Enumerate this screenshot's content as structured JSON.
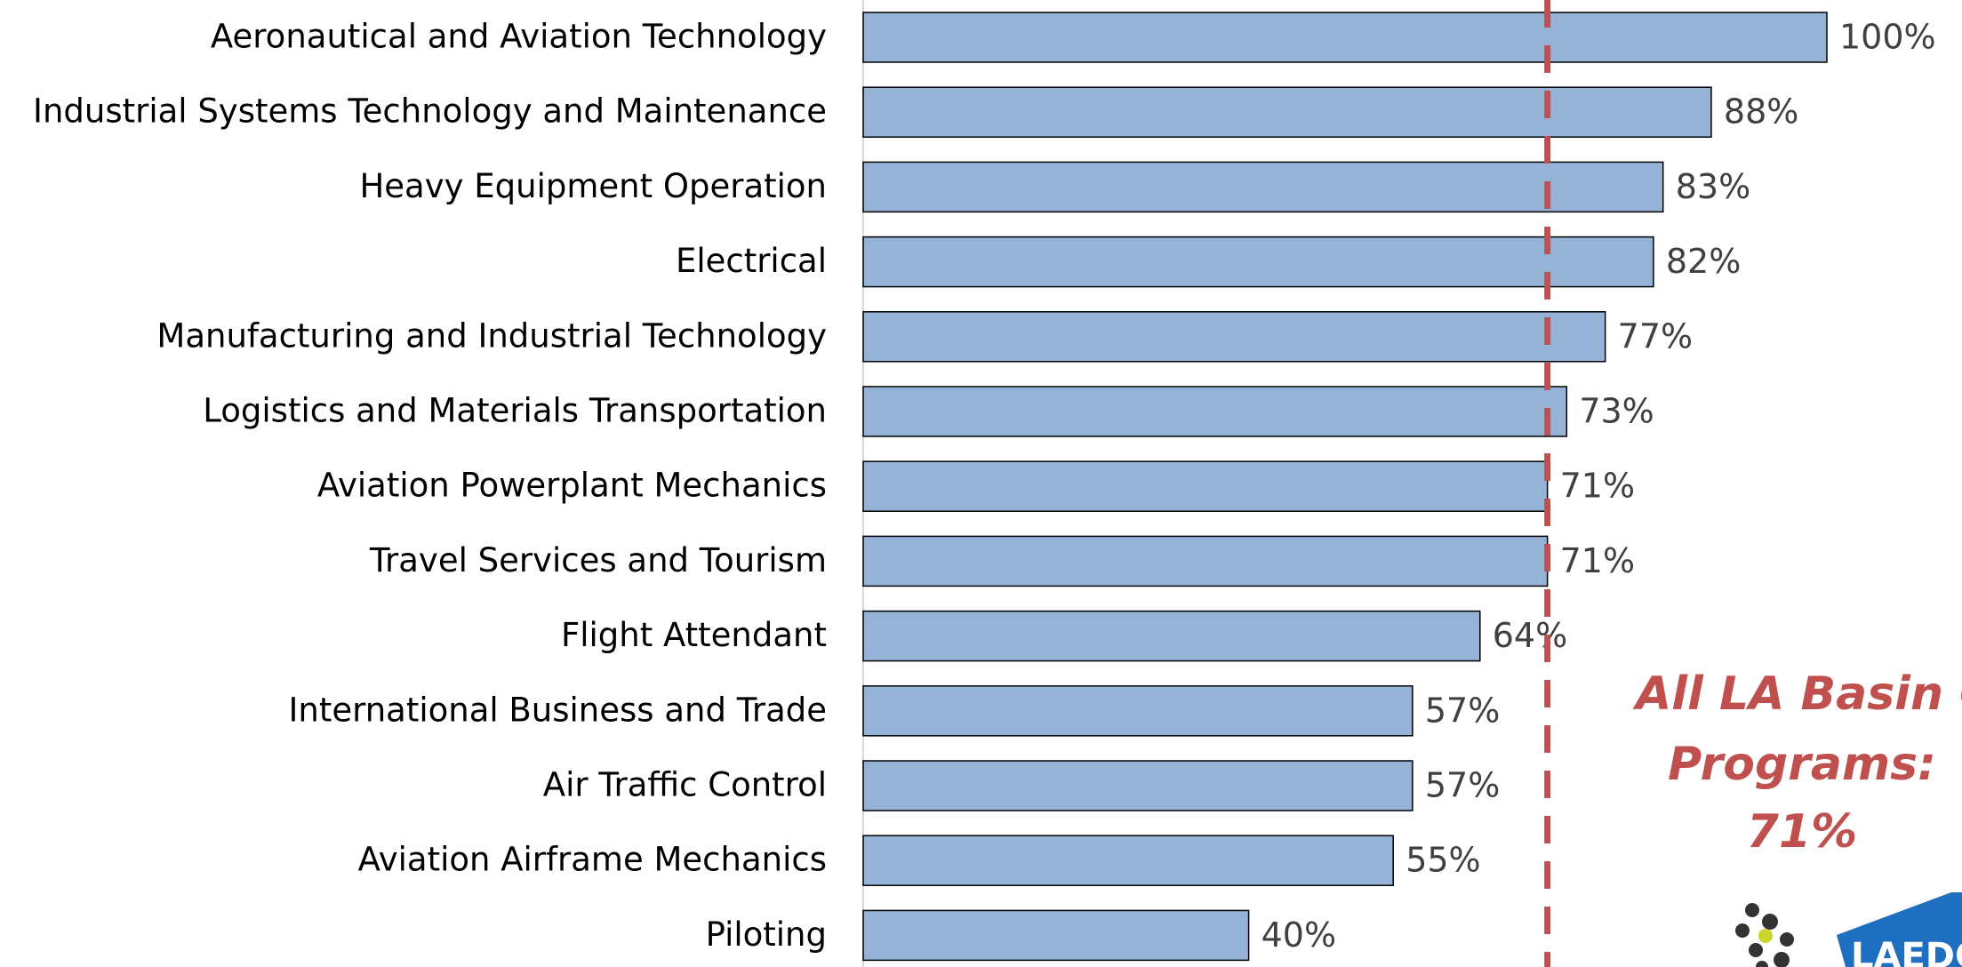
{
  "chart_data": {
    "type": "barh",
    "categories": [
      "Aeronautical and Aviation Technology",
      "Industrial Systems Technology and Maintenance",
      "Heavy Equipment Operation",
      "Electrical",
      "Manufacturing and Industrial Technology",
      "Logistics and Materials Transportation",
      "Aviation Powerplant Mechanics",
      "Travel Services and Tourism",
      "Flight Attendant",
      "International Business and Trade",
      "Air Traffic Control",
      "Aviation Airframe Mechanics",
      "Piloting"
    ],
    "values": [
      100,
      88,
      83,
      82,
      77,
      73,
      71,
      71,
      64,
      57,
      57,
      55,
      40
    ],
    "value_labels": [
      "100%",
      "88%",
      "83%",
      "82%",
      "77%",
      "73%",
      "71%",
      "71%",
      "64%",
      "57%",
      "57%",
      "55%",
      "40%"
    ],
    "color": "#95b3d7",
    "xlim": [
      0,
      100
    ],
    "reference_line": {
      "value": 71,
      "color": "#c0504d"
    },
    "annotation": [
      "All LA Basin CE",
      "Programs:",
      "71%"
    ],
    "logo_text": "LAEDC"
  }
}
